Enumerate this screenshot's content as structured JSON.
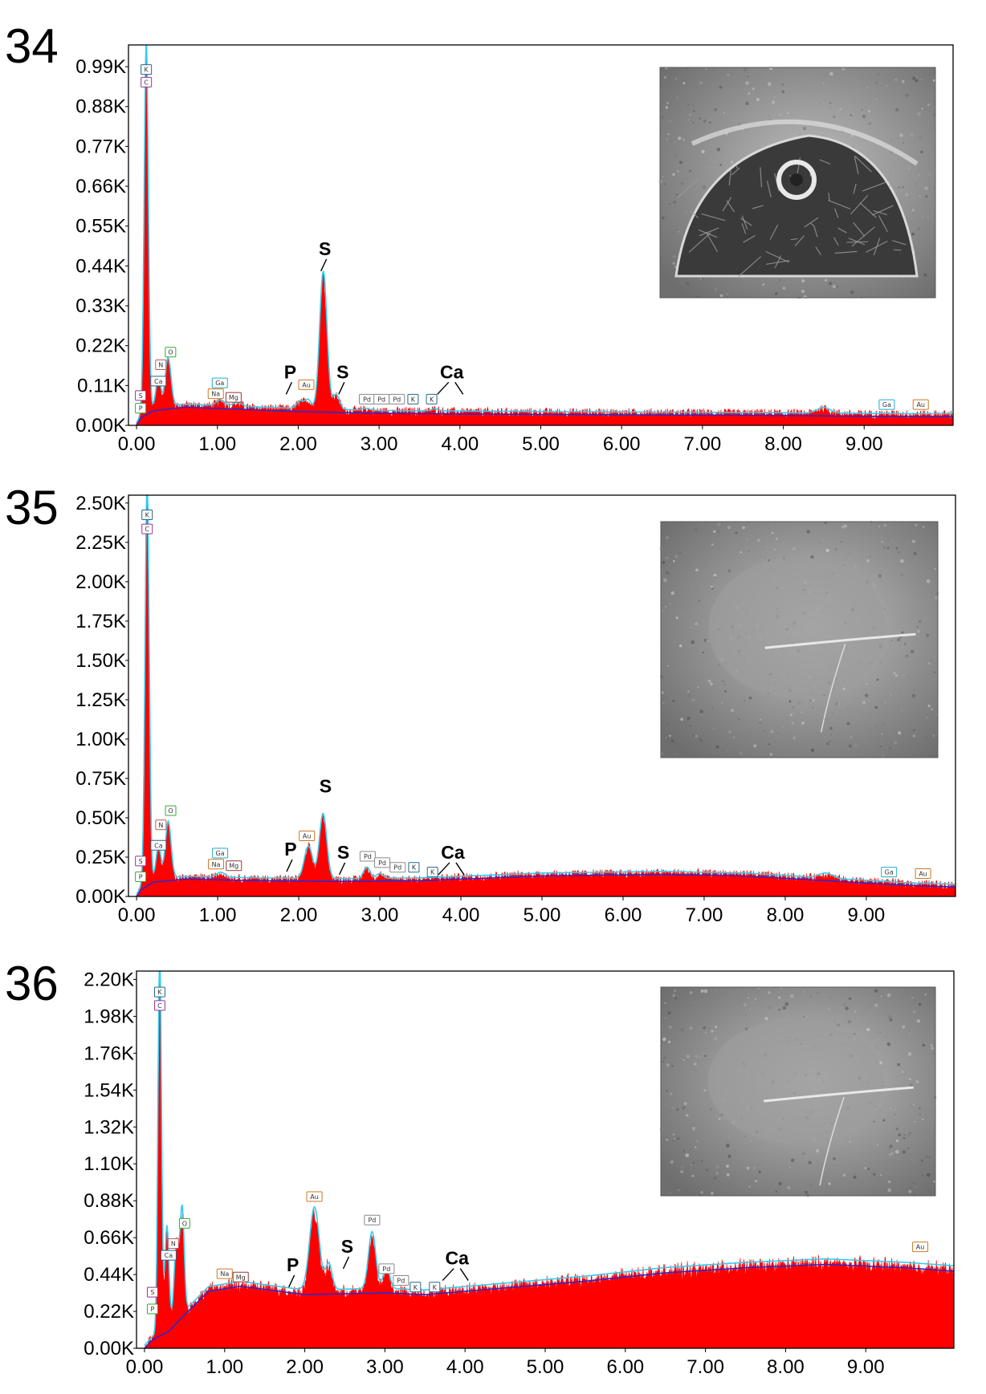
{
  "colors": {
    "spectrum": "#ff0000",
    "envelope": "#33ccee",
    "background_fit": "#2a2acc",
    "axis": "#000000"
  },
  "chart_data": [
    {
      "panel_number": "34",
      "type": "area",
      "ylim": [
        0,
        1.05
      ],
      "xlim": [
        -0.1,
        10.1
      ],
      "y_ticks": [
        {
          "value": 0.0,
          "label": "0.00K"
        },
        {
          "value": 0.11,
          "label": "0.11K"
        },
        {
          "value": 0.22,
          "label": "0.22K"
        },
        {
          "value": 0.33,
          "label": "0.33K"
        },
        {
          "value": 0.44,
          "label": "0.44K"
        },
        {
          "value": 0.55,
          "label": "0.55K"
        },
        {
          "value": 0.66,
          "label": "0.66K"
        },
        {
          "value": 0.77,
          "label": "0.77K"
        },
        {
          "value": 0.88,
          "label": "0.88K"
        },
        {
          "value": 0.99,
          "label": "0.99K"
        }
      ],
      "x_ticks": [
        "0.00",
        "1.00",
        "2.00",
        "3.00",
        "4.00",
        "5.00",
        "6.00",
        "7.00",
        "8.00",
        "9.00"
      ],
      "baseline": [
        [
          0,
          0
        ],
        [
          0.05,
          0.02
        ],
        [
          0.2,
          0.04
        ],
        [
          0.6,
          0.05
        ],
        [
          1.2,
          0.045
        ],
        [
          2.0,
          0.038
        ],
        [
          3.0,
          0.033
        ],
        [
          5.0,
          0.03
        ],
        [
          7.0,
          0.028
        ],
        [
          8.0,
          0.027
        ],
        [
          9.0,
          0.025
        ],
        [
          10.1,
          0.024
        ]
      ],
      "peaks": [
        {
          "x": 0.12,
          "h": 1.0,
          "w": 0.025
        },
        {
          "x": 0.27,
          "h": 0.08,
          "w": 0.03
        },
        {
          "x": 0.39,
          "h": 0.13,
          "w": 0.035
        },
        {
          "x": 1.04,
          "h": 0.015,
          "w": 0.05
        },
        {
          "x": 1.25,
          "h": 0.01,
          "w": 0.05
        },
        {
          "x": 2.02,
          "h": 0.02,
          "w": 0.04
        },
        {
          "x": 2.12,
          "h": 0.025,
          "w": 0.04
        },
        {
          "x": 2.31,
          "h": 0.37,
          "w": 0.045
        },
        {
          "x": 2.47,
          "h": 0.04,
          "w": 0.04
        },
        {
          "x": 2.84,
          "h": 0.005,
          "w": 0.04
        },
        {
          "x": 3.69,
          "h": 0.005,
          "w": 0.05
        },
        {
          "x": 8.5,
          "h": 0.015,
          "w": 0.08
        }
      ],
      "noise": 0.012,
      "element_labels": [
        {
          "text": "S",
          "x": 2.33,
          "y": 0.47
        },
        {
          "text": "P",
          "x": 1.9,
          "y": 0.13
        },
        {
          "text": "S",
          "x": 2.55,
          "y": 0.13
        },
        {
          "text": "Ca",
          "x": 3.9,
          "y": 0.13
        }
      ],
      "badges": [
        {
          "text": "K",
          "x": 0.12,
          "y": 0.98,
          "c": "#226688"
        },
        {
          "text": "C",
          "x": 0.12,
          "y": 0.945,
          "c": "#993399"
        },
        {
          "text": "O",
          "x": 0.42,
          "y": 0.2,
          "c": "#33aa33"
        },
        {
          "text": "N",
          "x": 0.3,
          "y": 0.165,
          "c": "#cc5555"
        },
        {
          "text": "Ca",
          "x": 0.27,
          "y": 0.12,
          "c": "#226688"
        },
        {
          "text": "S",
          "x": 0.05,
          "y": 0.08,
          "c": "#993399"
        },
        {
          "text": "P",
          "x": 0.05,
          "y": 0.045,
          "c": "#33aa33"
        },
        {
          "text": "Ga",
          "x": 1.03,
          "y": 0.115,
          "c": "#22aacc"
        },
        {
          "text": "Na",
          "x": 0.98,
          "y": 0.085,
          "c": "#cc7722"
        },
        {
          "text": "Mg",
          "x": 1.2,
          "y": 0.075,
          "c": "#993333"
        },
        {
          "text": "Au",
          "x": 2.1,
          "y": 0.11,
          "c": "#cc7722"
        },
        {
          "text": "Pd",
          "x": 2.85,
          "y": 0.07,
          "c": "#888888"
        },
        {
          "text": "Pd",
          "x": 3.03,
          "y": 0.07,
          "c": "#888888"
        },
        {
          "text": "Pd",
          "x": 3.22,
          "y": 0.07,
          "c": "#888888"
        },
        {
          "text": "K",
          "x": 3.42,
          "y": 0.07,
          "c": "#226688"
        },
        {
          "text": "K",
          "x": 3.65,
          "y": 0.07,
          "c": "#226688"
        },
        {
          "text": "Ga",
          "x": 9.28,
          "y": 0.055,
          "c": "#22aacc"
        },
        {
          "text": "Au",
          "x": 9.7,
          "y": 0.055,
          "c": "#cc7722"
        }
      ]
    },
    {
      "panel_number": "35",
      "type": "area",
      "ylim": [
        0,
        2.55
      ],
      "xlim": [
        -0.1,
        10.1
      ],
      "y_ticks": [
        {
          "value": 0.0,
          "label": "0.00K"
        },
        {
          "value": 0.25,
          "label": "0.25K"
        },
        {
          "value": 0.5,
          "label": "0.50K"
        },
        {
          "value": 0.75,
          "label": "0.75K"
        },
        {
          "value": 1.0,
          "label": "1.00K"
        },
        {
          "value": 1.25,
          "label": "1.25K"
        },
        {
          "value": 1.5,
          "label": "1.50K"
        },
        {
          "value": 1.75,
          "label": "1.75K"
        },
        {
          "value": 2.0,
          "label": "2.00K"
        },
        {
          "value": 2.25,
          "label": "2.25K"
        },
        {
          "value": 2.5,
          "label": "2.50K"
        }
      ],
      "x_ticks": [
        "0.00",
        "1.00",
        "2.00",
        "3.00",
        "4.00",
        "5.00",
        "6.00",
        "7.00",
        "8.00",
        "9.00"
      ],
      "baseline": [
        [
          0,
          0
        ],
        [
          0.05,
          0.04
        ],
        [
          0.2,
          0.09
        ],
        [
          0.6,
          0.11
        ],
        [
          1.5,
          0.1
        ],
        [
          2.5,
          0.095
        ],
        [
          3.5,
          0.1
        ],
        [
          5.0,
          0.13
        ],
        [
          6.5,
          0.14
        ],
        [
          7.5,
          0.13
        ],
        [
          8.5,
          0.1
        ],
        [
          9.5,
          0.07
        ],
        [
          10.1,
          0.06
        ]
      ],
      "peaks": [
        {
          "x": 0.13,
          "h": 2.5,
          "w": 0.025
        },
        {
          "x": 0.27,
          "h": 0.2,
          "w": 0.03
        },
        {
          "x": 0.39,
          "h": 0.35,
          "w": 0.035
        },
        {
          "x": 1.04,
          "h": 0.03,
          "w": 0.05
        },
        {
          "x": 2.12,
          "h": 0.2,
          "w": 0.05
        },
        {
          "x": 2.3,
          "h": 0.4,
          "w": 0.045
        },
        {
          "x": 2.84,
          "h": 0.07,
          "w": 0.04
        },
        {
          "x": 3.0,
          "h": 0.03,
          "w": 0.04
        },
        {
          "x": 8.5,
          "h": 0.03,
          "w": 0.08
        }
      ],
      "noise": 0.025,
      "element_labels": [
        {
          "text": "S",
          "x": 2.33,
          "y": 0.66
        },
        {
          "text": "P",
          "x": 1.9,
          "y": 0.26
        },
        {
          "text": "S",
          "x": 2.55,
          "y": 0.24
        },
        {
          "text": "Ca",
          "x": 3.9,
          "y": 0.24
        }
      ],
      "badges": [
        {
          "text": "K",
          "x": 0.13,
          "y": 2.42,
          "c": "#226688"
        },
        {
          "text": "C",
          "x": 0.13,
          "y": 2.33,
          "c": "#993399"
        },
        {
          "text": "O",
          "x": 0.42,
          "y": 0.54,
          "c": "#33aa33"
        },
        {
          "text": "N",
          "x": 0.3,
          "y": 0.45,
          "c": "#cc5555"
        },
        {
          "text": "Ca",
          "x": 0.27,
          "y": 0.32,
          "c": "#226688"
        },
        {
          "text": "S",
          "x": 0.05,
          "y": 0.22,
          "c": "#993399"
        },
        {
          "text": "P",
          "x": 0.05,
          "y": 0.12,
          "c": "#33aa33"
        },
        {
          "text": "Ga",
          "x": 1.03,
          "y": 0.27,
          "c": "#22aacc"
        },
        {
          "text": "Na",
          "x": 0.98,
          "y": 0.2,
          "c": "#cc7722"
        },
        {
          "text": "Mg",
          "x": 1.2,
          "y": 0.19,
          "c": "#993333"
        },
        {
          "text": "Au",
          "x": 2.1,
          "y": 0.38,
          "c": "#cc7722"
        },
        {
          "text": "Pd",
          "x": 2.85,
          "y": 0.25,
          "c": "#888888"
        },
        {
          "text": "Pd",
          "x": 3.03,
          "y": 0.21,
          "c": "#888888"
        },
        {
          "text": "Pd",
          "x": 3.22,
          "y": 0.18,
          "c": "#888888"
        },
        {
          "text": "K",
          "x": 3.42,
          "y": 0.18,
          "c": "#226688"
        },
        {
          "text": "K",
          "x": 3.65,
          "y": 0.15,
          "c": "#226688"
        },
        {
          "text": "Ga",
          "x": 9.28,
          "y": 0.15,
          "c": "#22aacc"
        },
        {
          "text": "Au",
          "x": 9.7,
          "y": 0.14,
          "c": "#cc7722"
        }
      ]
    },
    {
      "panel_number": "36",
      "type": "area",
      "ylim": [
        0,
        2.25
      ],
      "xlim": [
        -0.1,
        10.1
      ],
      "y_ticks": [
        {
          "value": 0.0,
          "label": "0.00K"
        },
        {
          "value": 0.22,
          "label": "0.22K"
        },
        {
          "value": 0.44,
          "label": "0.44K"
        },
        {
          "value": 0.66,
          "label": "0.66K"
        },
        {
          "value": 0.88,
          "label": "0.88K"
        },
        {
          "value": 1.1,
          "label": "1.10K"
        },
        {
          "value": 1.32,
          "label": "1.32K"
        },
        {
          "value": 1.54,
          "label": "1.54K"
        },
        {
          "value": 1.76,
          "label": "1.76K"
        },
        {
          "value": 1.98,
          "label": "1.98K"
        },
        {
          "value": 2.2,
          "label": "2.20K"
        }
      ],
      "x_ticks": [
        "0.00",
        "1.00",
        "2.00",
        "3.00",
        "4.00",
        "5.00",
        "6.00",
        "7.00",
        "8.00",
        "9.00"
      ],
      "baseline": [
        [
          0,
          0
        ],
        [
          0.1,
          0.05
        ],
        [
          0.3,
          0.1
        ],
        [
          0.5,
          0.2
        ],
        [
          0.8,
          0.34
        ],
        [
          1.2,
          0.37
        ],
        [
          2.0,
          0.32
        ],
        [
          3.0,
          0.33
        ],
        [
          3.5,
          0.32
        ],
        [
          4.5,
          0.36
        ],
        [
          5.5,
          0.4
        ],
        [
          6.5,
          0.45
        ],
        [
          7.5,
          0.48
        ],
        [
          8.5,
          0.5
        ],
        [
          9.5,
          0.48
        ],
        [
          10.1,
          0.46
        ]
      ],
      "peaks": [
        {
          "x": 0.19,
          "h": 2.2,
          "w": 0.022
        },
        {
          "x": 0.28,
          "h": 0.6,
          "w": 0.025
        },
        {
          "x": 0.4,
          "h": 0.45,
          "w": 0.03
        },
        {
          "x": 0.47,
          "h": 0.6,
          "w": 0.025
        },
        {
          "x": 2.12,
          "h": 0.48,
          "w": 0.06
        },
        {
          "x": 2.3,
          "h": 0.15,
          "w": 0.04
        },
        {
          "x": 2.84,
          "h": 0.33,
          "w": 0.045
        },
        {
          "x": 3.02,
          "h": 0.12,
          "w": 0.04
        }
      ],
      "noise": 0.03,
      "element_labels": [
        {
          "text": "P",
          "x": 1.85,
          "y": 0.46
        },
        {
          "text": "S",
          "x": 2.53,
          "y": 0.57
        },
        {
          "text": "Ca",
          "x": 3.9,
          "y": 0.5
        }
      ],
      "badges": [
        {
          "text": "K",
          "x": 0.19,
          "y": 2.12,
          "c": "#226688"
        },
        {
          "text": "C",
          "x": 0.19,
          "y": 2.04,
          "c": "#993399"
        },
        {
          "text": "O",
          "x": 0.5,
          "y": 0.74,
          "c": "#33aa33"
        },
        {
          "text": "N",
          "x": 0.36,
          "y": 0.62,
          "c": "#cc5555"
        },
        {
          "text": "Ca",
          "x": 0.3,
          "y": 0.55,
          "c": "#226688"
        },
        {
          "text": "S",
          "x": 0.1,
          "y": 0.33,
          "c": "#993399"
        },
        {
          "text": "P",
          "x": 0.1,
          "y": 0.23,
          "c": "#33aa33"
        },
        {
          "text": "Na",
          "x": 1.0,
          "y": 0.44,
          "c": "#cc7722"
        },
        {
          "text": "Mg",
          "x": 1.2,
          "y": 0.42,
          "c": "#993333"
        },
        {
          "text": "Au",
          "x": 2.12,
          "y": 0.9,
          "c": "#cc7722"
        },
        {
          "text": "Pd",
          "x": 2.84,
          "y": 0.76,
          "c": "#888888"
        },
        {
          "text": "Pd",
          "x": 3.02,
          "y": 0.47,
          "c": "#888888"
        },
        {
          "text": "Pd",
          "x": 3.2,
          "y": 0.4,
          "c": "#888888"
        },
        {
          "text": "K",
          "x": 3.38,
          "y": 0.36,
          "c": "#226688"
        },
        {
          "text": "K",
          "x": 3.62,
          "y": 0.36,
          "c": "#226688"
        },
        {
          "text": "Au",
          "x": 9.68,
          "y": 0.6,
          "c": "#cc7722"
        }
      ]
    }
  ],
  "figure_numbers": [
    "34",
    "35",
    "36"
  ]
}
